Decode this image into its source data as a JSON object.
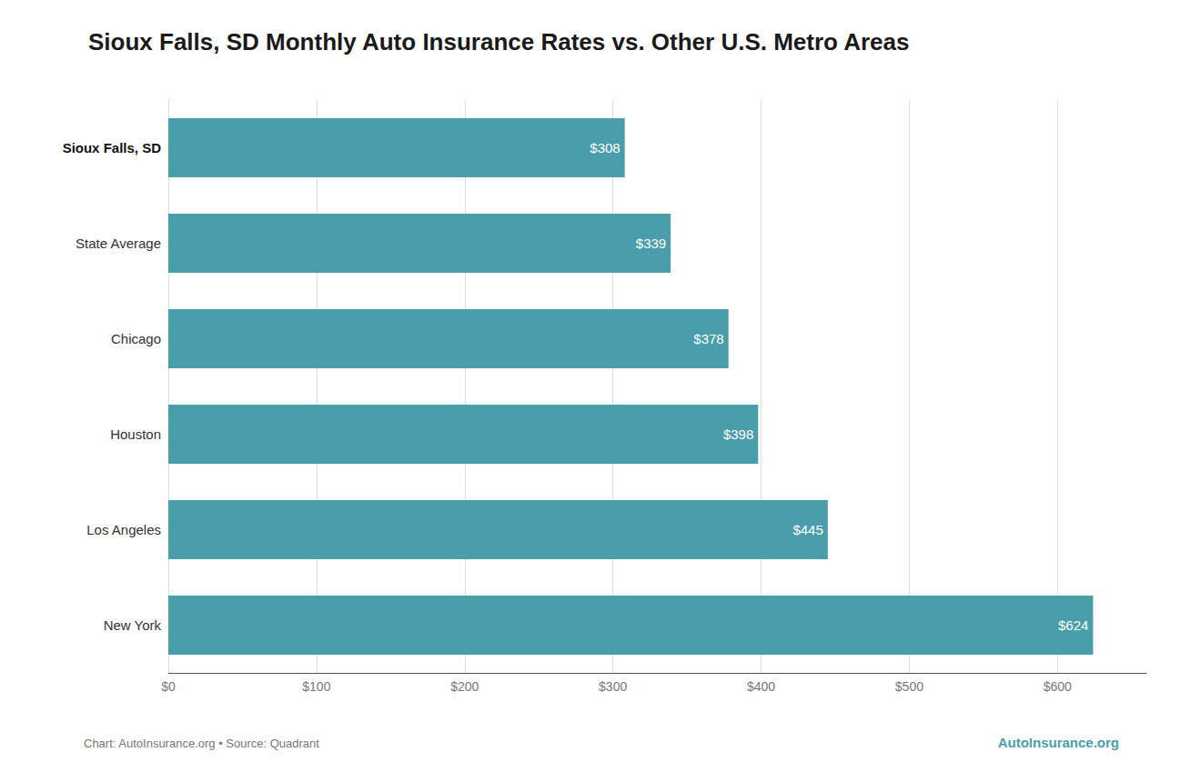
{
  "chart_data": {
    "type": "bar",
    "orientation": "horizontal",
    "title": "Sioux Falls, SD Monthly Auto Insurance Rates vs. Other U.S. Metro Areas",
    "categories": [
      "Sioux Falls, SD",
      "State Average",
      "Chicago",
      "Houston",
      "Los Angeles",
      "New York"
    ],
    "values": [
      308,
      339,
      378,
      398,
      445,
      624
    ],
    "value_labels": [
      "$308",
      "$339",
      "$378",
      "$398",
      "$445",
      "$624"
    ],
    "data_labels": true,
    "color": "#4a9dab",
    "xlim": [
      0,
      660
    ],
    "xticks": [
      {
        "value": 0,
        "label": "$0"
      },
      {
        "value": 100,
        "label": "$100"
      },
      {
        "value": 200,
        "label": "$200"
      },
      {
        "value": 300,
        "label": "$300"
      },
      {
        "value": 400,
        "label": "$400"
      },
      {
        "value": 500,
        "label": "$500"
      },
      {
        "value": 600,
        "label": "$600"
      }
    ],
    "grid": true,
    "annotations": [
      "Chart: AutoInsurance.org • Source: Quadrant",
      "AutoInsurance.org"
    ]
  }
}
